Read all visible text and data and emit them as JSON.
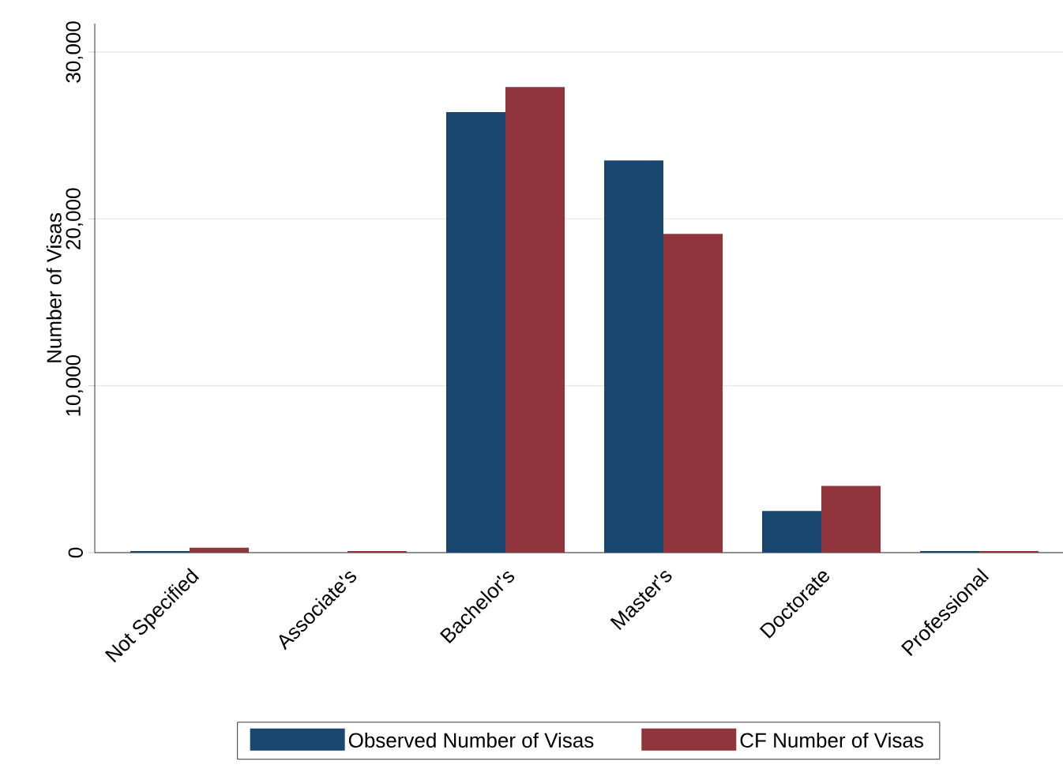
{
  "chart_data": {
    "type": "bar",
    "ylabel": "Number of Visas",
    "categories": [
      "Not Specified",
      "Associate's",
      "Bachelor's",
      "Master's",
      "Doctorate",
      "Professional"
    ],
    "series": [
      {
        "name": "Observed Number of Visas",
        "color": "#1a476f",
        "values": [
          100,
          null,
          26400,
          23500,
          2500,
          100
        ]
      },
      {
        "name": "CF Number of Visas",
        "color": "#90353b",
        "values": [
          300,
          100,
          27900,
          19100,
          4000,
          100
        ]
      }
    ],
    "ylim": [
      0,
      31700
    ],
    "yticks": [
      {
        "value": 0,
        "label": "0"
      },
      {
        "value": 10000,
        "label": "10,000"
      },
      {
        "value": 20000,
        "label": "20,000"
      },
      {
        "value": 30000,
        "label": "30,000"
      }
    ],
    "grid": "y",
    "legend": "bottom"
  }
}
